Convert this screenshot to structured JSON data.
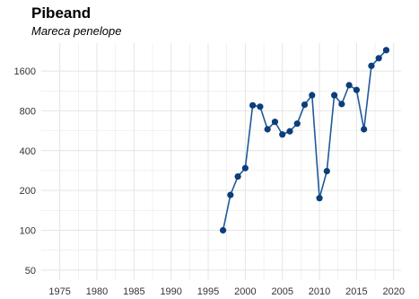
{
  "colors": {
    "line": "#1f5a99",
    "point": "#0b3e7a",
    "grid": "#e4e4e4",
    "axis": "#999999"
  },
  "chart_data": {
    "type": "line",
    "title": "Pibeand",
    "subtitle": "Mareca penelope",
    "xlabel": "",
    "ylabel": "",
    "y_scale": "log2",
    "xlim": [
      1972.5,
      2021
    ],
    "ylim": [
      42,
      2600
    ],
    "x_ticks": [
      1975,
      1980,
      1985,
      1990,
      1995,
      2000,
      2005,
      2010,
      2015,
      2020
    ],
    "y_ticks": [
      50,
      100,
      200,
      400,
      800,
      1600
    ],
    "grid": true,
    "series": [
      {
        "x": [
          1997,
          1998,
          1999,
          2000,
          2001,
          2002,
          2003,
          2004,
          2005,
          2006,
          2007,
          2008,
          2009,
          2010,
          2011,
          2012,
          2013,
          2014,
          2015,
          2016,
          2017,
          2018,
          2019
        ],
        "values": [
          100,
          185,
          255,
          295,
          880,
          860,
          580,
          660,
          530,
          560,
          640,
          890,
          1050,
          175,
          280,
          1050,
          900,
          1250,
          1150,
          580,
          1750,
          2000,
          2300
        ]
      }
    ]
  }
}
